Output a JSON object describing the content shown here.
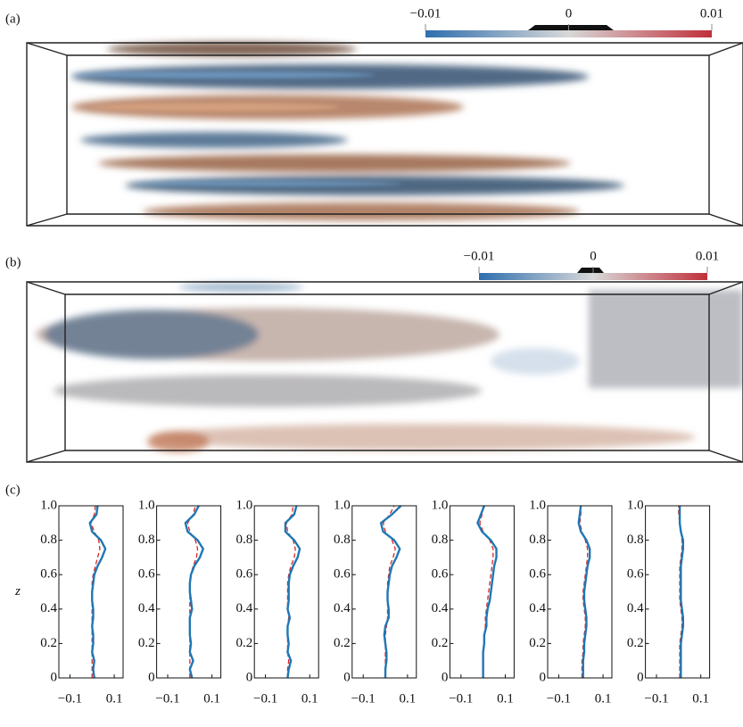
{
  "panels": [
    {
      "label": "(a)",
      "colorbar": {
        "lim": [
          -0.01,
          0.01
        ],
        "colors": [
          "#2f6fae",
          "#d8d8d8",
          "#c0303a"
        ],
        "ticks": [
          {
            "value": -0.01,
            "label": "−0.01"
          },
          0,
          0.01
        ]
      }
    },
    {
      "label": "(b)",
      "colorbar": {
        "lim": [
          -0.01,
          0.01
        ],
        "colors": [
          "#2f6fae",
          "#d8d8d8",
          "#c0303a"
        ],
        "ticks": [
          {
            "value": -0.01,
            "label": "−0.01"
          },
          0,
          0.01
        ]
      }
    },
    {
      "label": "(c)"
    }
  ],
  "chart_data": [
    {
      "type": "line",
      "ylabel": "z",
      "xlim": [
        -0.15,
        0.14
      ],
      "ylim": [
        0,
        1
      ],
      "xticks": [
        {
          "value": -0.1,
          "label": "−0.1"
        },
        0.1
      ],
      "yticks": [
        0,
        0.2,
        0.4,
        0.6,
        0.8,
        {
          "value": 1,
          "label": "1.0"
        }
      ],
      "z": [
        0,
        0.05,
        0.1,
        0.15,
        0.2,
        0.25,
        0.3,
        0.35,
        0.4,
        0.45,
        0.5,
        0.55,
        0.6,
        0.65,
        0.7,
        0.75,
        0.8,
        0.85,
        0.9,
        0.95,
        1
      ],
      "series": [
        {
          "color": "#1f77b4",
          "style": "solid",
          "values": [
            0.01,
            0.005,
            0.01,
            0.0,
            0.005,
            0.005,
            0.0,
            0.005,
            0.005,
            0.0,
            0.0,
            0.005,
            0.01,
            0.025,
            0.045,
            0.06,
            0.04,
            0.0,
            -0.01,
            0.02,
            0.025
          ]
        },
        {
          "color": "#d62728",
          "style": "dashed",
          "values": [
            0.0,
            0.0,
            0.0,
            0.0,
            0.0,
            0.0,
            0.0,
            0.0,
            0.0,
            0.0,
            0.0,
            0.0,
            0.005,
            0.015,
            0.025,
            0.035,
            0.03,
            0.01,
            -0.005,
            0.01,
            0.015
          ]
        }
      ]
    },
    {
      "type": "line",
      "xlim": [
        -0.15,
        0.14
      ],
      "ylim": [
        0,
        1
      ],
      "xticks": [
        {
          "value": -0.1,
          "label": "−0.1"
        },
        0.1
      ],
      "yticks": [
        0,
        0.2,
        0.4,
        0.6,
        0.8,
        {
          "value": 1,
          "label": "1.0"
        }
      ],
      "z": [
        0,
        0.05,
        0.1,
        0.15,
        0.2,
        0.25,
        0.3,
        0.35,
        0.4,
        0.45,
        0.5,
        0.55,
        0.6,
        0.65,
        0.7,
        0.75,
        0.8,
        0.85,
        0.9,
        0.95,
        1
      ],
      "series": [
        {
          "color": "#1f77b4",
          "style": "solid",
          "values": [
            0.01,
            0.0,
            0.015,
            0.0,
            0.005,
            0.0,
            0.0,
            0.0,
            0.01,
            0.005,
            0.0,
            0.0,
            0.005,
            0.02,
            0.045,
            0.06,
            0.035,
            -0.01,
            -0.02,
            0.02,
            0.04
          ]
        },
        {
          "color": "#d62728",
          "style": "dashed",
          "values": [
            0.0,
            0.0,
            0.0,
            0.0,
            0.0,
            0.0,
            0.0,
            0.0,
            0.0,
            0.0,
            0.0,
            0.0,
            0.005,
            0.015,
            0.03,
            0.035,
            0.025,
            0.0,
            -0.01,
            0.015,
            0.025
          ]
        }
      ]
    },
    {
      "type": "line",
      "xlim": [
        -0.15,
        0.14
      ],
      "ylim": [
        0,
        1
      ],
      "xticks": [
        {
          "value": -0.1,
          "label": "−0.1"
        },
        0.1
      ],
      "yticks": [
        0,
        0.2,
        0.4,
        0.6,
        0.8,
        {
          "value": 1,
          "label": "1.0"
        }
      ],
      "z": [
        0,
        0.05,
        0.1,
        0.15,
        0.2,
        0.25,
        0.3,
        0.35,
        0.4,
        0.45,
        0.5,
        0.55,
        0.6,
        0.65,
        0.7,
        0.75,
        0.8,
        0.85,
        0.9,
        0.95,
        1
      ],
      "series": [
        {
          "color": "#1f77b4",
          "style": "solid",
          "values": [
            0.0,
            0.005,
            0.015,
            0.0,
            0.005,
            0.0,
            0.0,
            0.01,
            0.0,
            0.005,
            0.005,
            0.005,
            0.01,
            0.025,
            0.045,
            0.055,
            0.03,
            -0.01,
            -0.01,
            0.03,
            0.04
          ]
        },
        {
          "color": "#d62728",
          "style": "dashed",
          "values": [
            0.0,
            0.0,
            0.005,
            0.0,
            0.0,
            0.0,
            0.0,
            0.005,
            0.0,
            0.0,
            0.0,
            0.0,
            0.005,
            0.015,
            0.03,
            0.035,
            0.025,
            0.0,
            -0.005,
            0.02,
            0.025
          ]
        }
      ]
    },
    {
      "type": "line",
      "xlim": [
        -0.15,
        0.14
      ],
      "ylim": [
        0,
        1
      ],
      "xticks": [
        {
          "value": -0.1,
          "label": "−0.1"
        },
        0.1
      ],
      "yticks": [
        0,
        0.2,
        0.4,
        0.6,
        0.8,
        {
          "value": 1,
          "label": "1.0"
        }
      ],
      "z": [
        0,
        0.05,
        0.1,
        0.15,
        0.2,
        0.25,
        0.3,
        0.35,
        0.4,
        0.45,
        0.5,
        0.55,
        0.6,
        0.65,
        0.7,
        0.75,
        0.8,
        0.85,
        0.9,
        0.95,
        1
      ],
      "series": [
        {
          "color": "#1f77b4",
          "style": "solid",
          "values": [
            0.0,
            0.0,
            0.005,
            0.005,
            0.0,
            -0.005,
            0.0,
            0.015,
            0.015,
            0.01,
            0.01,
            0.015,
            0.02,
            0.03,
            0.05,
            0.065,
            0.04,
            -0.01,
            -0.02,
            0.03,
            0.07
          ]
        },
        {
          "color": "#d62728",
          "style": "dashed",
          "values": [
            0.0,
            0.0,
            0.0,
            0.0,
            0.0,
            0.0,
            0.005,
            0.01,
            0.01,
            0.01,
            0.01,
            0.01,
            0.015,
            0.02,
            0.035,
            0.045,
            0.03,
            0.0,
            -0.01,
            0.02,
            0.04
          ]
        }
      ]
    },
    {
      "type": "line",
      "xlim": [
        -0.15,
        0.14
      ],
      "ylim": [
        0,
        1
      ],
      "xticks": [
        {
          "value": -0.1,
          "label": "−0.1"
        },
        0.1
      ],
      "yticks": [
        0,
        0.2,
        0.4,
        0.6,
        0.8,
        {
          "value": 1,
          "label": "1.0"
        }
      ],
      "z": [
        0,
        0.05,
        0.1,
        0.15,
        0.2,
        0.25,
        0.3,
        0.35,
        0.4,
        0.45,
        0.5,
        0.55,
        0.6,
        0.65,
        0.7,
        0.75,
        0.8,
        0.85,
        0.9,
        0.95,
        1
      ],
      "series": [
        {
          "color": "#1f77b4",
          "style": "solid",
          "values": [
            0.0,
            0.0,
            0.0,
            0.0,
            0.005,
            0.005,
            0.015,
            0.015,
            0.02,
            0.03,
            0.035,
            0.04,
            0.045,
            0.05,
            0.06,
            0.06,
            0.035,
            -0.005,
            -0.025,
            -0.01,
            0.005
          ]
        },
        {
          "color": "#d62728",
          "style": "dashed",
          "values": [
            0.0,
            0.0,
            0.0,
            0.0,
            0.005,
            0.005,
            0.01,
            0.01,
            0.015,
            0.02,
            0.025,
            0.03,
            0.035,
            0.04,
            0.045,
            0.045,
            0.03,
            0.0,
            -0.015,
            -0.005,
            0.0
          ]
        }
      ]
    },
    {
      "type": "line",
      "xlim": [
        -0.15,
        0.14
      ],
      "ylim": [
        0,
        1
      ],
      "xticks": [
        {
          "value": -0.1,
          "label": "−0.1"
        },
        0.1
      ],
      "yticks": [
        0,
        0.2,
        0.4,
        0.6,
        0.8,
        {
          "value": 1,
          "label": "1.0"
        }
      ],
      "z": [
        0,
        0.05,
        0.1,
        0.15,
        0.2,
        0.25,
        0.3,
        0.35,
        0.4,
        0.45,
        0.5,
        0.55,
        0.6,
        0.65,
        0.7,
        0.75,
        0.8,
        0.85,
        0.9,
        0.95,
        1
      ],
      "series": [
        {
          "color": "#1f77b4",
          "style": "solid",
          "values": [
            0.01,
            0.01,
            0.01,
            0.015,
            0.015,
            0.02,
            0.025,
            0.025,
            0.02,
            0.015,
            0.015,
            0.02,
            0.025,
            0.03,
            0.04,
            0.04,
            0.025,
            0.0,
            -0.01,
            -0.005,
            0.0
          ]
        },
        {
          "color": "#d62728",
          "style": "dashed",
          "values": [
            0.005,
            0.005,
            0.005,
            0.01,
            0.01,
            0.015,
            0.02,
            0.02,
            0.015,
            0.01,
            0.01,
            0.015,
            0.02,
            0.025,
            0.03,
            0.03,
            0.02,
            0.005,
            -0.005,
            0.0,
            0.0
          ]
        }
      ]
    },
    {
      "type": "line",
      "xlim": [
        -0.15,
        0.14
      ],
      "ylim": [
        0,
        1
      ],
      "xticks": [
        {
          "value": -0.1,
          "label": "−0.1"
        },
        0.1
      ],
      "yticks": [
        0,
        0.2,
        0.4,
        0.6,
        0.8,
        {
          "value": 1,
          "label": "1.0"
        }
      ],
      "z": [
        0,
        0.05,
        0.1,
        0.15,
        0.2,
        0.25,
        0.3,
        0.35,
        0.4,
        0.45,
        0.5,
        0.55,
        0.6,
        0.65,
        0.7,
        0.75,
        0.8,
        0.85,
        0.9,
        0.95,
        1
      ],
      "series": [
        {
          "color": "#1f77b4",
          "style": "solid",
          "values": [
            0.01,
            0.01,
            0.01,
            0.01,
            0.01,
            0.015,
            0.02,
            0.02,
            0.015,
            0.01,
            0.01,
            0.01,
            0.01,
            0.01,
            0.015,
            0.02,
            0.02,
            0.01,
            0.005,
            0.005,
            0.005
          ]
        },
        {
          "color": "#d62728",
          "style": "dashed",
          "values": [
            0.005,
            0.005,
            0.005,
            0.005,
            0.005,
            0.01,
            0.015,
            0.015,
            0.01,
            0.005,
            0.005,
            0.005,
            0.005,
            0.005,
            0.01,
            0.015,
            0.015,
            0.01,
            0.005,
            0.0,
            0.0
          ]
        }
      ]
    }
  ]
}
